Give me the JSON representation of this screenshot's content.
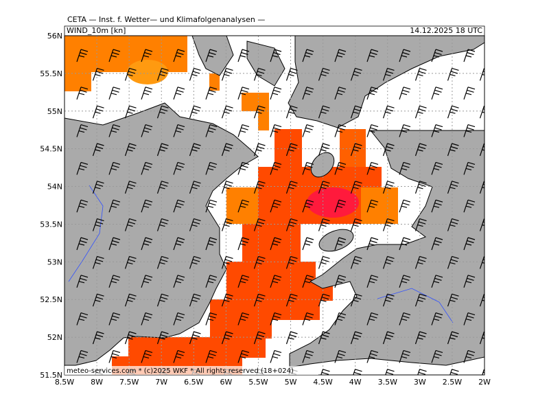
{
  "header": {
    "title": "CETA — Inst. f. Wetter— und Klimafolgenanalysen —",
    "field": "WIND_10m [kn]",
    "valid": "14.12.2025 18 UTC"
  },
  "axes": {
    "lat": [
      "56N",
      "55.5N",
      "55N",
      "54.5N",
      "54N",
      "53.5N",
      "53N",
      "52.5N",
      "52N",
      "51.5N"
    ],
    "lon": [
      "8.5W",
      "8W",
      "7.5W",
      "7W",
      "6.5W",
      "6W",
      "5.5W",
      "5W",
      "4.5W",
      "4W",
      "3.5W",
      "3W",
      "2.5W",
      "2W"
    ]
  },
  "footer": "meteo-services.com * (c)2025 WKF * All rights reserved (18+024)"
}
